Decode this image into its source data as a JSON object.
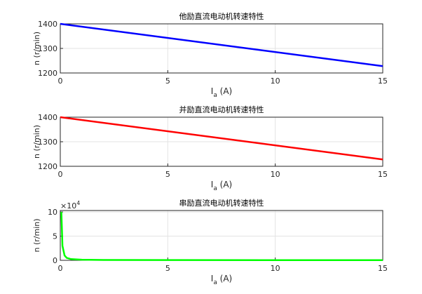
{
  "chart_data": [
    {
      "type": "line",
      "title": "他励直流电动机转速特性",
      "xlabel": [
        "I",
        "a",
        " (A)"
      ],
      "ylabel": "n (r/min)",
      "x": [
        0,
        15
      ],
      "values": [
        1400,
        1228
      ],
      "color": "#0000ff",
      "xlim": [
        0,
        15
      ],
      "xticks": [
        0,
        5,
        10,
        15
      ],
      "ylim": [
        1200,
        1400
      ],
      "yticks": [
        1200,
        1300,
        1400
      ],
      "grid": true
    },
    {
      "type": "line",
      "title": "并励直流电动机转速特性",
      "xlabel": [
        "I",
        "a",
        " (A)"
      ],
      "ylabel": "n (r/min)",
      "x": [
        0,
        15
      ],
      "values": [
        1400,
        1228
      ],
      "color": "#ff0000",
      "xlim": [
        0,
        15
      ],
      "xticks": [
        0,
        5,
        10,
        15
      ],
      "ylim": [
        1200,
        1400
      ],
      "yticks": [
        1200,
        1300,
        1400
      ],
      "grid": true
    },
    {
      "type": "line",
      "title": "串励直流电动机转速特性",
      "xlabel": [
        "I",
        "a",
        " (A)"
      ],
      "ylabel": "n (r/min)",
      "x": [
        0.05,
        0.1,
        0.2,
        0.3,
        0.5,
        1,
        2,
        5,
        10,
        15
      ],
      "values": [
        100000,
        30000,
        10000,
        5000,
        2500,
        1200,
        800,
        500,
        400,
        350
      ],
      "color": "#00ff00",
      "xlim": [
        0,
        15
      ],
      "xticks": [
        0,
        5,
        10,
        15
      ],
      "ylim": [
        0,
        103000
      ],
      "yticks": [
        0,
        {
          "value": 50000,
          "label": "5"
        },
        {
          "value": 100000,
          "label": "10"
        }
      ],
      "y_exponent": [
        "×10",
        "4"
      ],
      "grid": true
    }
  ]
}
